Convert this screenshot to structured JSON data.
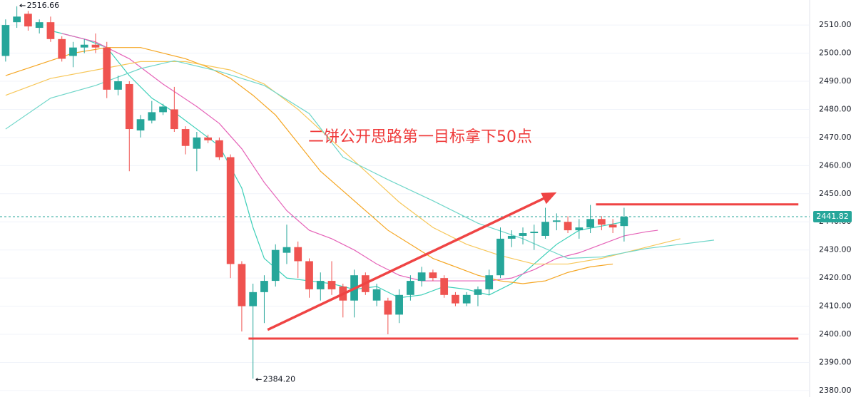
{
  "chart_data": {
    "type": "candlestick",
    "up_color": "#26a69a",
    "down_color": "#ef5350",
    "open": [
      2499,
      2511,
      2514,
      2509,
      2511,
      2505,
      2499,
      2502,
      2503,
      2502,
      2487,
      2489,
      2472.5,
      2476,
      2479,
      2480,
      2473,
      2466,
      2470,
      2469,
      2463,
      2425,
      2410,
      2415,
      2419,
      2429,
      2431,
      2426,
      2416,
      2419,
      2417,
      2412,
      2421,
      2412,
      2412,
      2407,
      2414,
      2419,
      2422,
      2420,
      2414,
      2411,
      2414,
      2416,
      2421,
      2434,
      2435,
      2436,
      2435,
      2440,
      2440,
      2437,
      2438,
      2441,
      2439,
      2438.5
    ],
    "high": [
      2512,
      2516.66,
      2515,
      2512,
      2513,
      2506,
      2504,
      2505,
      2507,
      2504,
      2492,
      2490,
      2478,
      2483,
      2482,
      2488,
      2474,
      2472,
      2471,
      2470,
      2464,
      2426,
      2418,
      2421,
      2432,
      2439,
      2433,
      2427,
      2422,
      2426,
      2418,
      2423,
      2422,
      2418,
      2413,
      2416,
      2421,
      2424,
      2423,
      2421,
      2415,
      2415,
      2417,
      2423,
      2438,
      2437,
      2438,
      2439,
      2445,
      2443,
      2442,
      2441,
      2446,
      2442,
      2441,
      2445
    ],
    "low": [
      2497,
      2509,
      2508,
      2507,
      2504,
      2497,
      2495,
      2500,
      2500,
      2484,
      2485,
      2458,
      2470,
      2475,
      2478,
      2472,
      2464,
      2458,
      2468,
      2462,
      2420,
      2401,
      2384.2,
      2404,
      2417,
      2425,
      2420,
      2413,
      2412,
      2414,
      2406,
      2406,
      2414,
      2410,
      2400,
      2404,
      2412,
      2417,
      2419,
      2413,
      2410,
      2410,
      2410,
      2414,
      2420,
      2431,
      2432,
      2430,
      2434,
      2437,
      2436,
      2434,
      2436,
      2437,
      2436,
      2433
    ],
    "close": [
      2510,
      2513,
      2509.5,
      2511,
      2505,
      2498,
      2502,
      2503,
      2502,
      2487,
      2490,
      2473,
      2476.5,
      2479,
      2481,
      2473,
      2467,
      2470,
      2469,
      2463,
      2425,
      2410,
      2415,
      2419,
      2430,
      2431,
      2426,
      2416,
      2419,
      2416,
      2412,
      2421,
      2415,
      2416,
      2407,
      2414,
      2419,
      2422,
      2420,
      2414,
      2411,
      2414,
      2416,
      2421,
      2434,
      2435,
      2436,
      2436.5,
      2440,
      2440.5,
      2437,
      2438,
      2441,
      2439,
      2438,
      2441.82
    ],
    "series": [
      {
        "color": "#3ccfb8",
        "x": [
          4,
          7,
          9,
          11,
          13,
          15,
          17,
          19,
          21,
          22,
          23,
          25,
          27,
          29,
          31,
          33,
          35,
          37,
          39,
          41,
          43,
          45,
          47,
          49,
          51,
          53,
          55
        ],
        "values": [
          2508,
          2505,
          2502,
          2492,
          2484,
          2479,
          2473,
          2467,
          2452,
          2438,
          2427,
          2420,
          2419,
          2418,
          2416,
          2417,
          2413,
          2414,
          2417,
          2416,
          2414,
          2418,
          2425,
          2432,
          2437,
          2438.5,
          2440
        ]
      },
      {
        "color": "#e563b8",
        "x": [
          5,
          8,
          11,
          14,
          17,
          19,
          21,
          23,
          25,
          27,
          29,
          31,
          33,
          35,
          37,
          39,
          41,
          43,
          45,
          47,
          49,
          51,
          53,
          55,
          57,
          58
        ],
        "values": [
          2507,
          2504,
          2498,
          2489,
          2481,
          2475,
          2466,
          2454,
          2444,
          2437,
          2434,
          2430,
          2425,
          2421,
          2419,
          2419,
          2419,
          2419,
          2420,
          2423,
          2427,
          2429,
          2432,
          2435,
          2436.5,
          2437
        ]
      },
      {
        "color": "#f5a623",
        "x": [
          0,
          3,
          6,
          9,
          12,
          14,
          16,
          18,
          20,
          22,
          24,
          26,
          28,
          30,
          32,
          34,
          36,
          38,
          40,
          42,
          44,
          46,
          48,
          50,
          52,
          54
        ],
        "values": [
          2492,
          2496,
          2500,
          2502,
          2502,
          2500,
          2498,
          2495,
          2491,
          2485,
          2478,
          2468,
          2458,
          2451,
          2444,
          2437,
          2432,
          2427,
          2424,
          2421,
          2419,
          2418,
          2419,
          2422,
          2424,
          2425
        ]
      },
      {
        "color": "#f7c75a",
        "x": [
          0,
          4,
          8,
          12,
          16,
          20,
          23,
          26,
          29,
          32,
          35,
          38,
          41,
          44,
          47,
          50,
          53,
          56,
          60
        ],
        "values": [
          2485,
          2491,
          2494,
          2497,
          2497,
          2494,
          2489,
          2480,
          2469,
          2458,
          2447,
          2438,
          2432,
          2428,
          2425,
          2425,
          2427,
          2430,
          2434
        ]
      },
      {
        "color": "#6fd6c9",
        "x": [
          0,
          4,
          8,
          12,
          15,
          19,
          23,
          27,
          30,
          34,
          38,
          42,
          46,
          50,
          53,
          57,
          63
        ],
        "values": [
          2473,
          2484,
          2488.5,
          2494.5,
          2497.3,
          2493.5,
          2488.5,
          2478.5,
          2463,
          2455,
          2447.5,
          2439.5,
          2434,
          2427,
          2427.5,
          2430.5,
          2433.5
        ]
      }
    ],
    "xlim": [
      -0.5,
      71.5
    ],
    "ylim": [
      2377.7,
      2518.9
    ],
    "yticks": [
      {
        "value": 2380,
        "label": "2380.00"
      },
      {
        "value": 2390,
        "label": "2390.00"
      },
      {
        "value": 2400,
        "label": "2400.00"
      },
      {
        "value": 2410,
        "label": "2410.00"
      },
      {
        "value": 2420,
        "label": "2420.00"
      },
      {
        "value": 2430,
        "label": "2430.00"
      },
      {
        "value": 2440,
        "label": "2440.00"
      },
      {
        "value": 2450,
        "label": "2450.00"
      },
      {
        "value": 2460,
        "label": "2460.00"
      },
      {
        "value": 2470,
        "label": "2470.00"
      },
      {
        "value": 2480,
        "label": "2480.00"
      },
      {
        "value": 2490,
        "label": "2490.00"
      },
      {
        "value": 2500,
        "label": "2500.00"
      },
      {
        "value": 2510,
        "label": "2510.00"
      }
    ],
    "grid": true,
    "last_price": 2441.82,
    "high_marker": 2516.66,
    "low_marker": {
      "value": 2384.2,
      "label": "2384.20"
    },
    "drawing_color": "#ef4444",
    "hlines": [
      {
        "y": 2398.5,
        "x": [
          21.6,
          70.5
        ]
      },
      {
        "y": 2446.2,
        "x": [
          52.5,
          70.5
        ]
      }
    ],
    "arrow": {
      "x": [
        23.3,
        49
      ],
      "y": [
        2401.6,
        2450.5
      ]
    },
    "annotation": "二饼公开思路第一目标拿下50点"
  }
}
